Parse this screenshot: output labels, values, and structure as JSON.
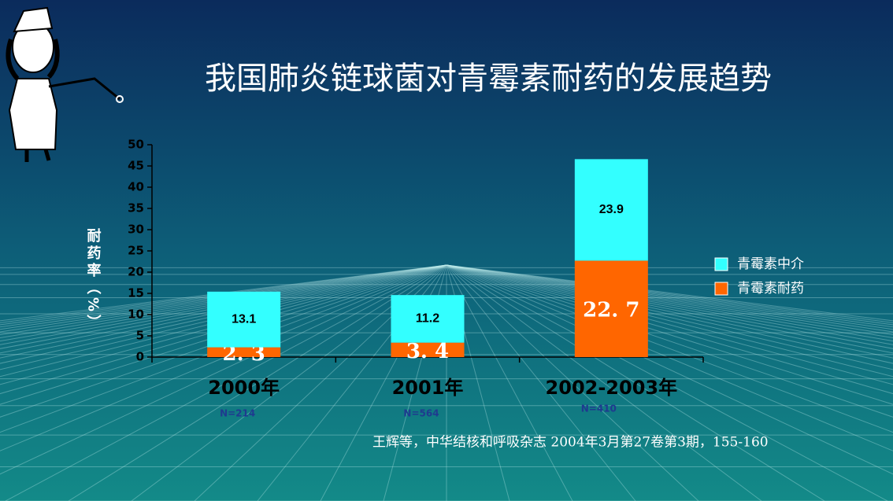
{
  "chart_data": {
    "type": "stacked-bar",
    "title": "我国肺炎链球菌对青霉素耐药的发展趋势",
    "y_label": "耐药率（%）",
    "categories": [
      "2000年",
      "2001年",
      "2002-2003年"
    ],
    "series": [
      {
        "name": "青霉素中介",
        "color": "#33ffff",
        "values": [
          13.1,
          11.2,
          23.9
        ]
      },
      {
        "name": "青霉素耐药",
        "color": "#ff6600",
        "values": [
          2.3,
          3.4,
          22.7
        ],
        "value_labels": [
          "2. 3",
          "3. 4",
          "22. 7"
        ]
      }
    ],
    "annotations": [
      "N=214",
      "N=564",
      "N=410"
    ],
    "source": "王辉等，中华结核和呼吸杂志 2004年3月第27卷第3期，155-160",
    "ylim": [
      0,
      50
    ],
    "yticks": [
      0,
      5,
      10,
      15,
      20,
      25,
      30,
      35,
      40,
      45,
      50
    ]
  }
}
